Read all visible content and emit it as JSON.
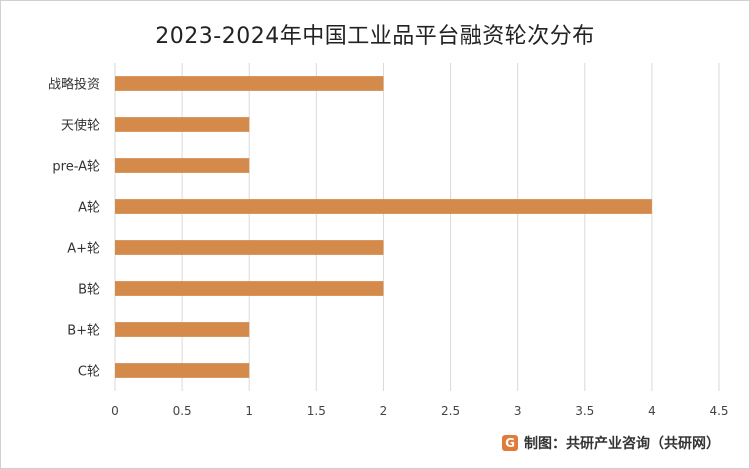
{
  "chart_data": {
    "type": "bar",
    "orientation": "horizontal",
    "title": "2023-2024年中国工业品平台融资轮次分布",
    "categories": [
      "战略投资",
      "天使轮",
      "pre-A轮",
      "A轮",
      "A+轮",
      "B轮",
      "B+轮",
      "C轮"
    ],
    "values": [
      2,
      1,
      1,
      4,
      2,
      2,
      1,
      1
    ],
    "xlim": [
      0,
      4.5
    ],
    "xticks": [
      "0",
      "0.5",
      "1",
      "1.5",
      "2",
      "2.5",
      "3",
      "3.5",
      "4",
      "4.5"
    ],
    "xlabel": "",
    "ylabel": "",
    "grid": "vertical",
    "legend": "none",
    "bar_color": "#d48a4a"
  },
  "source": {
    "logo_glyph": "G",
    "text": "制图：共研产业咨询（共研网）"
  }
}
